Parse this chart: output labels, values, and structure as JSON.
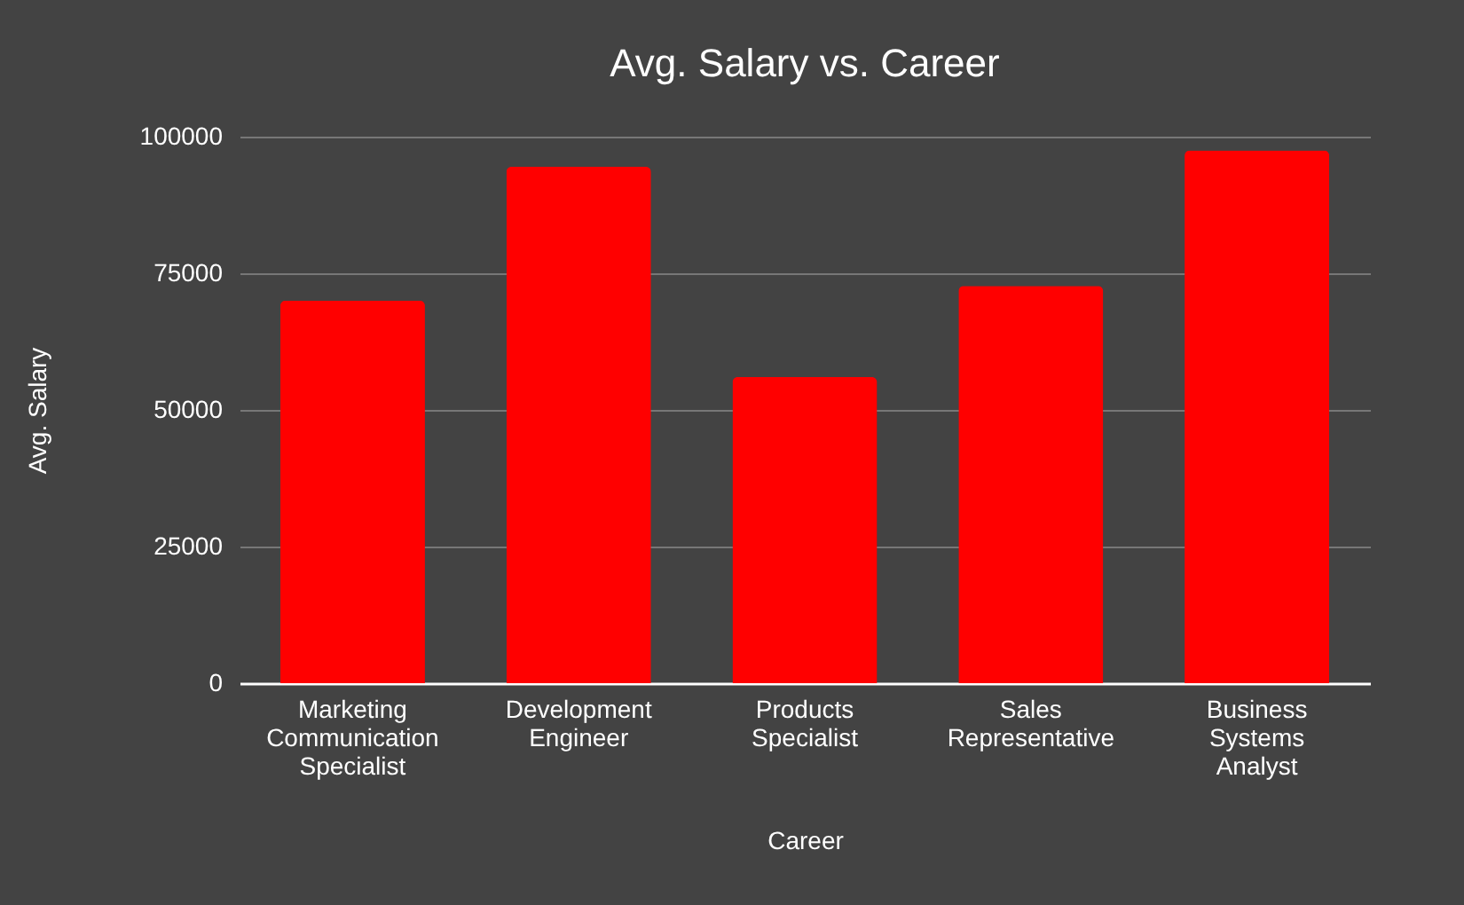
{
  "chart_data": {
    "type": "bar",
    "title": "Avg. Salary vs. Career",
    "xlabel": "Career",
    "ylabel": "Avg. Salary",
    "categories": [
      "Marketing Communication Specialist",
      "Development Engineer",
      "Products Specialist",
      "Sales Representative",
      "Business Systems Analyst"
    ],
    "values": [
      70000,
      94500,
      56000,
      72700,
      97500
    ],
    "color": "#ff0000",
    "ylim": [
      0,
      100000
    ],
    "yticks": [
      0,
      25000,
      50000,
      75000,
      100000
    ],
    "grid": "y"
  }
}
